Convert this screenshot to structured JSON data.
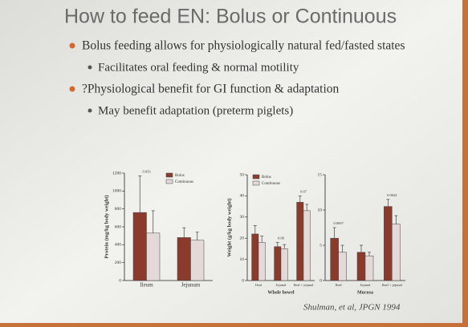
{
  "slide": {
    "title": "How to feed EN: Bolus or Continuous",
    "bullets": [
      {
        "text": "Bolus feeding allows for physiologically natural fed/fasted states",
        "sub": [
          "Facilitates oral feeding & normal motility"
        ]
      },
      {
        "text": "?Physiological benefit for GI function & adaptation",
        "sub": [
          "May benefit adaptation (preterm piglets)"
        ]
      }
    ],
    "citation": "Shulman, et al, JPGN 1994"
  },
  "chart_data": [
    {
      "type": "bar",
      "ylabel": "Protein (mg/kg body weight)",
      "categories": [
        "Ileum",
        "Jejunum"
      ],
      "series": [
        {
          "name": "Bolus",
          "color": "#8a3b2b",
          "values": [
            760,
            480
          ],
          "errors": [
            410,
            110
          ]
        },
        {
          "name": "Continuous",
          "color": "#e3d9d9",
          "values": [
            530,
            450
          ],
          "errors": [
            250,
            90
          ]
        }
      ],
      "annotations": [
        "0.033",
        null
      ],
      "ylim": [
        0,
        1200
      ],
      "yticks": [
        0,
        200,
        400,
        600,
        800,
        1000,
        1200
      ]
    },
    {
      "type": "bar",
      "ylabel": "Weight (g/kg body weight)",
      "xlabel": "Whole bowel",
      "categories": [
        "Ileal",
        "Jejunal",
        "Ileal + jejunal"
      ],
      "series": [
        {
          "name": "Bolus",
          "color": "#8a3b2b",
          "values": [
            22,
            16,
            37
          ],
          "errors": [
            4,
            2,
            3
          ]
        },
        {
          "name": "Continuous",
          "color": "#e3d9d9",
          "values": [
            18,
            15,
            33
          ],
          "errors": [
            3,
            2,
            3
          ]
        }
      ],
      "annotations": [
        null,
        "0.06",
        "0.07"
      ],
      "ylim": [
        0,
        50
      ],
      "yticks": [
        0,
        10,
        20,
        30,
        40,
        50
      ]
    },
    {
      "type": "bar",
      "xlabel": "Mucosa",
      "categories": [
        "Ileal",
        "Jejunal",
        "Ileal + jejunal"
      ],
      "series": [
        {
          "color": "#8a3b2b",
          "values": [
            6,
            4,
            10.5
          ],
          "errors": [
            1.5,
            1,
            1
          ]
        },
        {
          "color": "#e3d9d9",
          "values": [
            4,
            3.5,
            8
          ],
          "errors": [
            1,
            0.5,
            1.2
          ]
        }
      ],
      "annotations": [
        "0.0007",
        null,
        "0.0024"
      ],
      "ylim": [
        0,
        15
      ],
      "yticks": [
        0,
        5,
        10,
        15
      ]
    }
  ]
}
